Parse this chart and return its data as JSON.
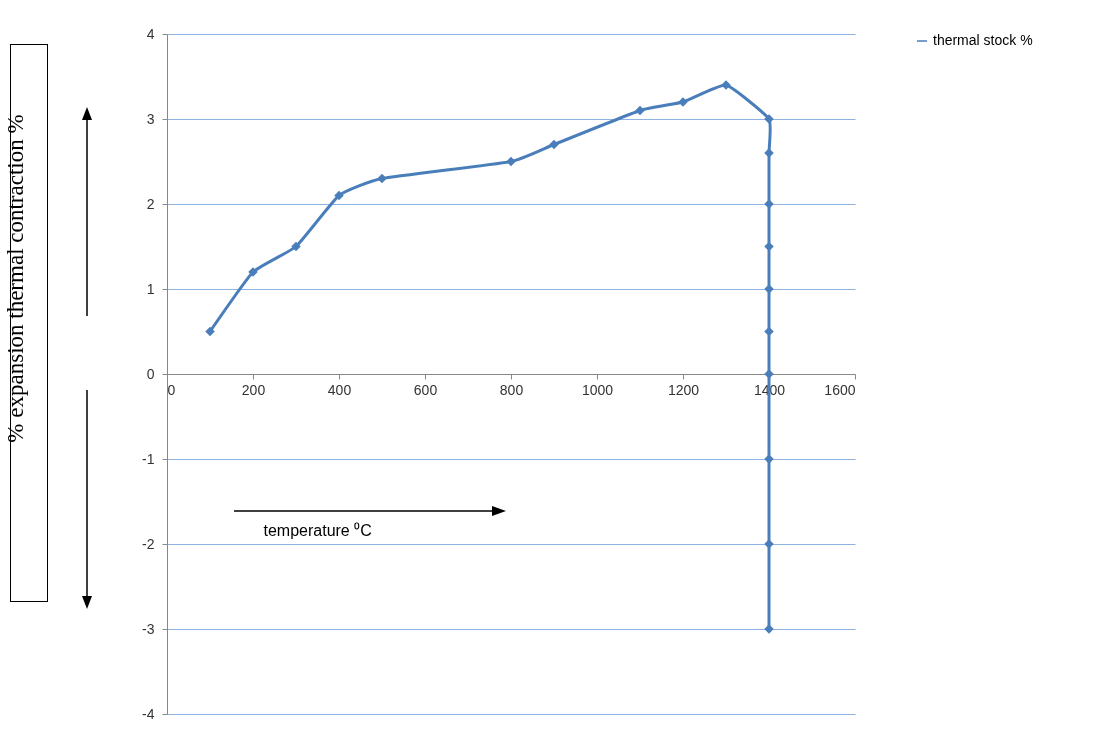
{
  "chart_data": {
    "type": "line",
    "xlabel": "temperature ⁰C",
    "ylabel": "% expansion thermal contraction %",
    "x": [
      100,
      200,
      300,
      400,
      500,
      800,
      900,
      1100,
      1200,
      1300,
      1400,
      1400,
      1400,
      1400,
      1400,
      1400,
      1400,
      1400,
      1400,
      1400
    ],
    "series": [
      {
        "name": "thermal stock %",
        "color": "#4a7ebb",
        "values": [
          0.5,
          1.2,
          1.5,
          2.1,
          2.3,
          2.5,
          2.7,
          3.1,
          3.2,
          3.4,
          3.0,
          2.6,
          2.0,
          1.5,
          1.0,
          0.5,
          0,
          -1,
          -2,
          -3
        ]
      }
    ],
    "xlim": [
      0,
      1600
    ],
    "xticks": [
      0,
      200,
      400,
      600,
      800,
      1000,
      1200,
      1400,
      1600
    ],
    "ylim": [
      -4,
      4
    ],
    "yticks": [
      -4,
      -3,
      -2,
      -1,
      0,
      1,
      2,
      3,
      4
    ],
    "grid": "y",
    "legend": "right",
    "marker": "diamond",
    "line_style": "solid"
  }
}
